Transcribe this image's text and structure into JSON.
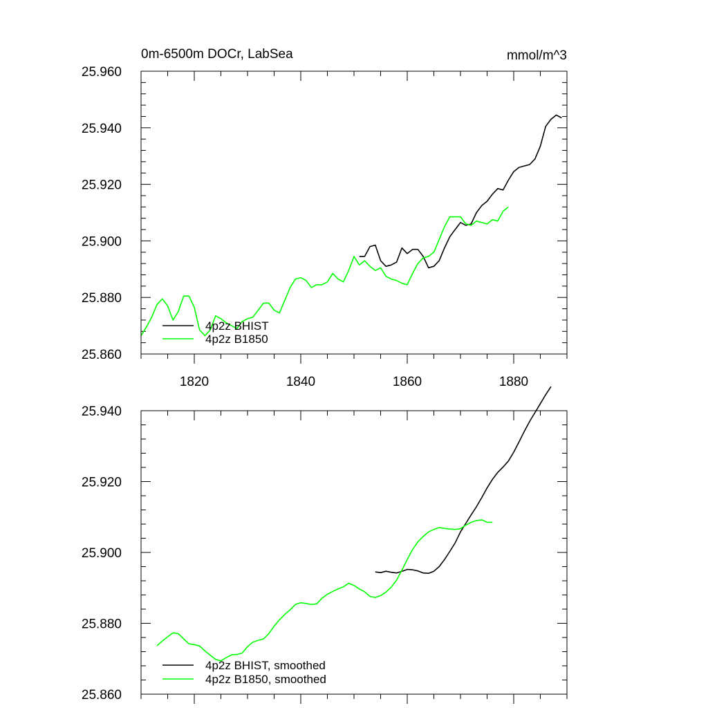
{
  "chart_data": [
    {
      "type": "line",
      "title": "0m-6500m DOCr, LabSea",
      "units": "mmol/m^3",
      "xlim": [
        1810,
        1890
      ],
      "ylim": [
        25.86,
        25.96
      ],
      "xticks": [
        1820,
        1840,
        1860,
        1880
      ],
      "xtick_labels": [
        "1820",
        "1840",
        "1860",
        "1880"
      ],
      "yticks": [
        25.86,
        25.88,
        25.9,
        25.92,
        25.94,
        25.96
      ],
      "ytick_labels": [
        "25.860",
        "25.880",
        "25.900",
        "25.920",
        "25.940",
        "25.960"
      ],
      "legend_position": "lower-left",
      "series": [
        {
          "name": "4p2z BHIST",
          "color": "#000000",
          "x": [
            1851,
            1852,
            1853,
            1854,
            1855,
            1856,
            1857,
            1858,
            1859,
            1860,
            1861,
            1862,
            1863,
            1864,
            1865,
            1866,
            1867,
            1868,
            1869,
            1870,
            1871,
            1872,
            1873,
            1874,
            1875,
            1876,
            1877,
            1878,
            1879,
            1880,
            1881,
            1882,
            1883,
            1884,
            1885,
            1886,
            1887,
            1888,
            1889
          ],
          "values": [
            25.8945,
            25.8945,
            25.898,
            25.8985,
            25.893,
            25.891,
            25.8915,
            25.8925,
            25.8975,
            25.8955,
            25.897,
            25.897,
            25.8945,
            25.8905,
            25.891,
            25.893,
            25.8975,
            25.9015,
            25.904,
            25.9065,
            25.9055,
            25.906,
            25.91,
            25.9125,
            25.914,
            25.9165,
            25.9185,
            25.918,
            25.9215,
            25.9245,
            25.926,
            25.9265,
            25.927,
            25.929,
            25.9335,
            25.9405,
            25.943,
            25.9445,
            25.9435
          ]
        },
        {
          "name": "4p2z B1850",
          "color": "#00ff00",
          "x": [
            1810,
            1811,
            1812,
            1813,
            1814,
            1815,
            1816,
            1817,
            1818,
            1819,
            1820,
            1821,
            1822,
            1823,
            1824,
            1825,
            1826,
            1827,
            1828,
            1829,
            1830,
            1831,
            1832,
            1833,
            1834,
            1835,
            1836,
            1837,
            1838,
            1839,
            1840,
            1841,
            1842,
            1843,
            1844,
            1845,
            1846,
            1847,
            1848,
            1849,
            1850,
            1851,
            1852,
            1853,
            1854,
            1855,
            1856,
            1857,
            1858,
            1859,
            1860,
            1861,
            1862,
            1863,
            1864,
            1865,
            1866,
            1867,
            1868,
            1869,
            1870,
            1871,
            1872,
            1873,
            1874,
            1875,
            1876,
            1877,
            1878,
            1879
          ],
          "values": [
            25.8665,
            25.8695,
            25.873,
            25.8775,
            25.8795,
            25.877,
            25.872,
            25.875,
            25.8805,
            25.8805,
            25.8765,
            25.8685,
            25.8665,
            25.8685,
            25.8735,
            25.8725,
            25.871,
            25.87,
            25.869,
            25.8715,
            25.8725,
            25.873,
            25.8755,
            25.878,
            25.878,
            25.8755,
            25.8745,
            25.879,
            25.8835,
            25.8865,
            25.887,
            25.886,
            25.8835,
            25.8845,
            25.8845,
            25.8855,
            25.8885,
            25.8865,
            25.8855,
            25.8895,
            25.8945,
            25.8915,
            25.893,
            25.891,
            25.8895,
            25.8905,
            25.8875,
            25.8865,
            25.886,
            25.885,
            25.8845,
            25.8885,
            25.892,
            25.894,
            25.8945,
            25.896,
            25.9005,
            25.905,
            25.9085,
            25.9085,
            25.9085,
            25.906,
            25.9055,
            25.907,
            25.9065,
            25.906,
            25.9075,
            25.907,
            25.9105,
            25.912
          ]
        }
      ]
    },
    {
      "type": "line",
      "title": "",
      "xlim": [
        1810,
        1890
      ],
      "ylim": [
        25.86,
        25.94
      ],
      "xticks": [
        1820,
        1840,
        1860,
        1880
      ],
      "yticks": [
        25.86,
        25.88,
        25.9,
        25.92,
        25.94
      ],
      "ytick_labels": [
        "25.860",
        "25.880",
        "25.900",
        "25.920",
        "25.940"
      ],
      "legend_position": "lower-left",
      "series": [
        {
          "name": "4p2z BHIST, smoothed",
          "color": "#000000",
          "x": [
            1854,
            1855,
            1856,
            1857,
            1858,
            1859,
            1860,
            1861,
            1862,
            1863,
            1864,
            1865,
            1866,
            1867,
            1868,
            1869,
            1870,
            1871,
            1872,
            1873,
            1874,
            1875,
            1876,
            1877,
            1878,
            1879,
            1880,
            1881,
            1882,
            1883,
            1884,
            1885,
            1886,
            1887
          ],
          "values": [
            25.8945,
            25.8943,
            25.8947,
            25.8944,
            25.8942,
            25.8947,
            25.8952,
            25.8951,
            25.8948,
            25.8942,
            25.8941,
            25.8947,
            25.896,
            25.898,
            25.9003,
            25.9027,
            25.9058,
            25.9082,
            25.9106,
            25.9129,
            25.9155,
            25.9182,
            25.9206,
            25.9226,
            25.9241,
            25.9258,
            25.9283,
            25.9312,
            25.9342,
            25.937,
            25.9395,
            25.942,
            25.9445,
            25.9468
          ]
        },
        {
          "name": "4p2z B1850, smoothed",
          "color": "#00ff00",
          "x": [
            1813,
            1814,
            1815,
            1816,
            1817,
            1818,
            1819,
            1820,
            1821,
            1822,
            1823,
            1824,
            1825,
            1826,
            1827,
            1828,
            1829,
            1830,
            1831,
            1832,
            1833,
            1834,
            1835,
            1836,
            1837,
            1838,
            1839,
            1840,
            1841,
            1842,
            1843,
            1844,
            1845,
            1846,
            1847,
            1848,
            1849,
            1850,
            1851,
            1852,
            1853,
            1854,
            1855,
            1856,
            1857,
            1858,
            1859,
            1860,
            1861,
            1862,
            1863,
            1864,
            1865,
            1866,
            1867,
            1868,
            1869,
            1870,
            1871,
            1872,
            1873,
            1874,
            1875,
            1876
          ],
          "values": [
            25.8737,
            25.875,
            25.8762,
            25.8773,
            25.8771,
            25.8756,
            25.8742,
            25.874,
            25.8736,
            25.8722,
            25.871,
            25.8698,
            25.8694,
            25.8703,
            25.8711,
            25.8712,
            25.8716,
            25.8734,
            25.8747,
            25.8752,
            25.8756,
            25.8771,
            25.8792,
            25.881,
            25.8825,
            25.8838,
            25.8853,
            25.8858,
            25.8856,
            25.8853,
            25.8855,
            25.8871,
            25.8882,
            25.889,
            25.8897,
            25.8903,
            25.8913,
            25.8907,
            25.8897,
            25.8889,
            25.8876,
            25.8873,
            25.8878,
            25.8888,
            25.8902,
            25.8922,
            25.895,
            25.898,
            25.9008,
            25.903,
            25.9045,
            25.9058,
            25.9065,
            25.907,
            25.9068,
            25.9066,
            25.9065,
            25.9067,
            25.9077,
            25.9085,
            25.909,
            25.9092,
            25.9085,
            25.9085
          ]
        }
      ]
    }
  ]
}
